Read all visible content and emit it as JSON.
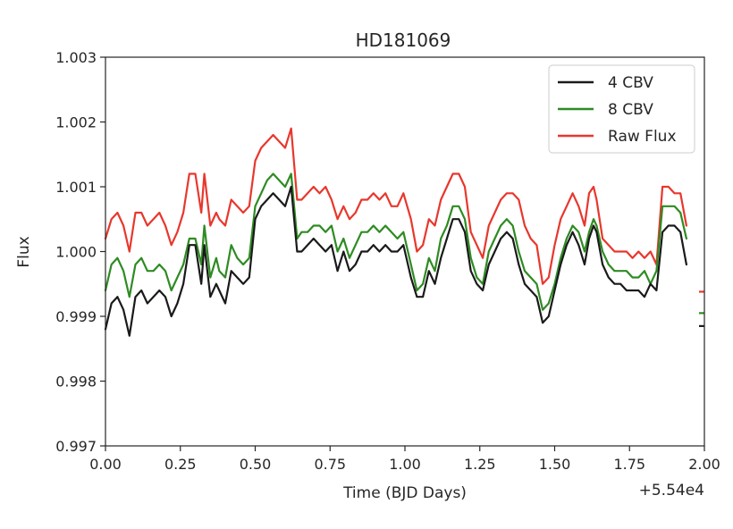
{
  "chart_data": {
    "type": "line",
    "title": "HD181069",
    "xlabel": "Time (BJD Days)",
    "ylabel": "Flux",
    "x_offset_label": "+5.54e4",
    "xlim": [
      0.0,
      2.0
    ],
    "ylim": [
      0.997,
      1.003
    ],
    "x_ticks": [
      "0.00",
      "0.25",
      "0.50",
      "0.75",
      "1.00",
      "1.25",
      "1.50",
      "1.75",
      "2.00"
    ],
    "y_ticks": [
      "0.997",
      "0.998",
      "0.999",
      "1.000",
      "1.001",
      "1.002",
      "1.003"
    ],
    "grid": false,
    "legend_position": "top-right",
    "series": [
      {
        "name": "4 CBV",
        "color": "#1a1a1a",
        "x": [
          0.0,
          0.02,
          0.04,
          0.06,
          0.08,
          0.1,
          0.12,
          0.14,
          0.16,
          0.18,
          0.2,
          0.22,
          0.24,
          0.26,
          0.28,
          0.3,
          0.32,
          0.33,
          0.35,
          0.37,
          0.38,
          0.4,
          0.42,
          0.44,
          0.46,
          0.48,
          0.5,
          0.52,
          0.54,
          0.56,
          0.58,
          0.6,
          0.62,
          0.64,
          0.655,
          0.675,
          0.695,
          0.715,
          0.735,
          0.755,
          0.775,
          0.795,
          0.815,
          0.835,
          0.855,
          0.875,
          0.895,
          0.915,
          0.935,
          0.955,
          0.975,
          0.995,
          1.02,
          1.04,
          1.06,
          1.08,
          1.1,
          1.12,
          1.14,
          1.16,
          1.18,
          1.2,
          1.22,
          1.24,
          1.26,
          1.28,
          1.3,
          1.32,
          1.34,
          1.36,
          1.38,
          1.4,
          1.42,
          1.44,
          1.46,
          1.48,
          1.5,
          1.52,
          1.54,
          1.56,
          1.58,
          1.6,
          1.615,
          1.63,
          1.64,
          1.66,
          1.68,
          1.7,
          1.72,
          1.74,
          1.76,
          1.78,
          1.8,
          1.82,
          1.84,
          1.86,
          1.88,
          1.9,
          1.92,
          1.94
        ],
        "y": [
          0.9988,
          0.9992,
          0.9993,
          0.9991,
          0.9987,
          0.9993,
          0.9994,
          0.9992,
          0.9993,
          0.9994,
          0.9993,
          0.999,
          0.9992,
          0.9995,
          1.0001,
          1.0001,
          0.9995,
          1.0001,
          0.9993,
          0.9995,
          0.9994,
          0.9992,
          0.9997,
          0.9996,
          0.9995,
          0.9996,
          1.0005,
          1.0007,
          1.0008,
          1.0009,
          1.0008,
          1.0007,
          1.001,
          1.0,
          1.0,
          1.0001,
          1.0002,
          1.0001,
          1.0,
          1.0001,
          0.9997,
          1.0,
          0.9997,
          0.9998,
          1.0,
          1.0,
          1.0001,
          1.0,
          1.0001,
          1.0,
          1.0,
          1.0001,
          0.9996,
          0.9993,
          0.9993,
          0.9997,
          0.9995,
          0.9999,
          1.0002,
          1.0005,
          1.0005,
          1.0003,
          0.9997,
          0.9995,
          0.9994,
          0.9998,
          1.0,
          1.0002,
          1.0003,
          1.0002,
          0.9998,
          0.9995,
          0.9994,
          0.9993,
          0.9989,
          0.999,
          0.9994,
          0.9998,
          1.0001,
          1.0003,
          1.0001,
          0.9998,
          1.0002,
          1.0004,
          1.0003,
          0.9998,
          0.9996,
          0.9995,
          0.9995,
          0.9994,
          0.9994,
          0.9994,
          0.9993,
          0.9995,
          0.9994,
          1.0003,
          1.0004,
          1.0004,
          1.0003,
          0.9998
        ]
      },
      {
        "name": "8 CBV",
        "color": "#2e8b22",
        "x": [
          0.0,
          0.02,
          0.04,
          0.06,
          0.08,
          0.1,
          0.12,
          0.14,
          0.16,
          0.18,
          0.2,
          0.22,
          0.24,
          0.26,
          0.28,
          0.3,
          0.32,
          0.33,
          0.35,
          0.37,
          0.38,
          0.4,
          0.42,
          0.44,
          0.46,
          0.48,
          0.5,
          0.52,
          0.54,
          0.56,
          0.58,
          0.6,
          0.62,
          0.64,
          0.655,
          0.675,
          0.695,
          0.715,
          0.735,
          0.755,
          0.775,
          0.795,
          0.815,
          0.835,
          0.855,
          0.875,
          0.895,
          0.915,
          0.935,
          0.955,
          0.975,
          0.995,
          1.02,
          1.04,
          1.06,
          1.08,
          1.1,
          1.12,
          1.14,
          1.16,
          1.18,
          1.2,
          1.22,
          1.24,
          1.26,
          1.28,
          1.3,
          1.32,
          1.34,
          1.36,
          1.38,
          1.4,
          1.42,
          1.44,
          1.46,
          1.48,
          1.5,
          1.52,
          1.54,
          1.56,
          1.58,
          1.6,
          1.615,
          1.63,
          1.64,
          1.66,
          1.68,
          1.7,
          1.72,
          1.74,
          1.76,
          1.78,
          1.8,
          1.82,
          1.84,
          1.86,
          1.88,
          1.9,
          1.92,
          1.94
        ],
        "y": [
          0.9994,
          0.9998,
          0.9999,
          0.9997,
          0.9993,
          0.9998,
          0.9999,
          0.9997,
          0.9997,
          0.9998,
          0.9997,
          0.9994,
          0.9996,
          0.9998,
          1.0002,
          1.0002,
          0.9998,
          1.0004,
          0.9996,
          0.9999,
          0.9997,
          0.9996,
          1.0001,
          0.9999,
          0.9998,
          0.9999,
          1.0007,
          1.0009,
          1.0011,
          1.0012,
          1.0011,
          1.001,
          1.0012,
          1.0002,
          1.0003,
          1.0003,
          1.0004,
          1.0004,
          1.0003,
          1.0004,
          1.0,
          1.0002,
          0.9999,
          1.0001,
          1.0003,
          1.0003,
          1.0004,
          1.0003,
          1.0004,
          1.0003,
          1.0002,
          1.0003,
          0.9998,
          0.9994,
          0.9995,
          0.9999,
          0.9997,
          1.0002,
          1.0004,
          1.0007,
          1.0007,
          1.0005,
          0.9999,
          0.9996,
          0.9995,
          1.0,
          1.0002,
          1.0004,
          1.0005,
          1.0004,
          1.0,
          0.9997,
          0.9996,
          0.9995,
          0.9991,
          0.9992,
          0.9995,
          0.9999,
          1.0002,
          1.0004,
          1.0003,
          1.0,
          1.0003,
          1.0005,
          1.0004,
          1.0,
          0.9998,
          0.9997,
          0.9997,
          0.9997,
          0.9996,
          0.9996,
          0.9997,
          0.9995,
          0.9997,
          1.0007,
          1.0007,
          1.0007,
          1.0006,
          1.0002
        ]
      },
      {
        "name": "Raw Flux",
        "color": "#e8372c",
        "x": [
          0.0,
          0.02,
          0.04,
          0.06,
          0.08,
          0.1,
          0.12,
          0.14,
          0.16,
          0.18,
          0.2,
          0.22,
          0.24,
          0.26,
          0.28,
          0.3,
          0.32,
          0.33,
          0.35,
          0.37,
          0.38,
          0.4,
          0.42,
          0.44,
          0.46,
          0.48,
          0.5,
          0.52,
          0.54,
          0.56,
          0.58,
          0.6,
          0.62,
          0.64,
          0.655,
          0.675,
          0.695,
          0.715,
          0.735,
          0.755,
          0.775,
          0.795,
          0.815,
          0.835,
          0.855,
          0.875,
          0.895,
          0.915,
          0.935,
          0.955,
          0.975,
          0.995,
          1.02,
          1.04,
          1.06,
          1.08,
          1.1,
          1.12,
          1.14,
          1.16,
          1.18,
          1.2,
          1.22,
          1.24,
          1.26,
          1.28,
          1.3,
          1.32,
          1.34,
          1.36,
          1.38,
          1.4,
          1.42,
          1.44,
          1.46,
          1.48,
          1.5,
          1.52,
          1.54,
          1.56,
          1.58,
          1.6,
          1.615,
          1.63,
          1.64,
          1.66,
          1.68,
          1.7,
          1.72,
          1.74,
          1.76,
          1.78,
          1.8,
          1.82,
          1.84,
          1.86,
          1.88,
          1.9,
          1.92,
          1.94
        ],
        "y": [
          1.0002,
          1.0005,
          1.0006,
          1.0004,
          1.0,
          1.0006,
          1.0006,
          1.0004,
          1.0005,
          1.0006,
          1.0004,
          1.0001,
          1.0003,
          1.0006,
          1.0012,
          1.0012,
          1.0006,
          1.0012,
          1.0004,
          1.0006,
          1.0005,
          1.0004,
          1.0008,
          1.0007,
          1.0006,
          1.0007,
          1.0014,
          1.0016,
          1.0017,
          1.0018,
          1.0017,
          1.0016,
          1.0019,
          1.0008,
          1.0008,
          1.0009,
          1.001,
          1.0009,
          1.001,
          1.0008,
          1.0005,
          1.0007,
          1.0005,
          1.0006,
          1.0008,
          1.0008,
          1.0009,
          1.0008,
          1.0009,
          1.0007,
          1.0007,
          1.0009,
          1.0005,
          1.0,
          1.0001,
          1.0005,
          1.0004,
          1.0008,
          1.001,
          1.0012,
          1.0012,
          1.001,
          1.0003,
          1.0001,
          0.9999,
          1.0004,
          1.0006,
          1.0008,
          1.0009,
          1.0009,
          1.0008,
          1.0004,
          1.0002,
          1.0001,
          0.9995,
          0.9996,
          1.0001,
          1.0005,
          1.0007,
          1.0009,
          1.0007,
          1.0004,
          1.0009,
          1.001,
          1.0008,
          1.0002,
          1.0001,
          1.0,
          1.0,
          1.0,
          0.9999,
          1.0,
          0.9999,
          1.0,
          0.9998,
          1.001,
          1.001,
          1.0009,
          1.0009,
          1.0004
        ]
      }
    ],
    "clipped_marks": [
      {
        "series": "4 CBV",
        "y": 0.99885
      },
      {
        "series": "8 CBV",
        "y": 0.99905
      },
      {
        "series": "Raw Flux",
        "y": 0.99938
      }
    ]
  }
}
